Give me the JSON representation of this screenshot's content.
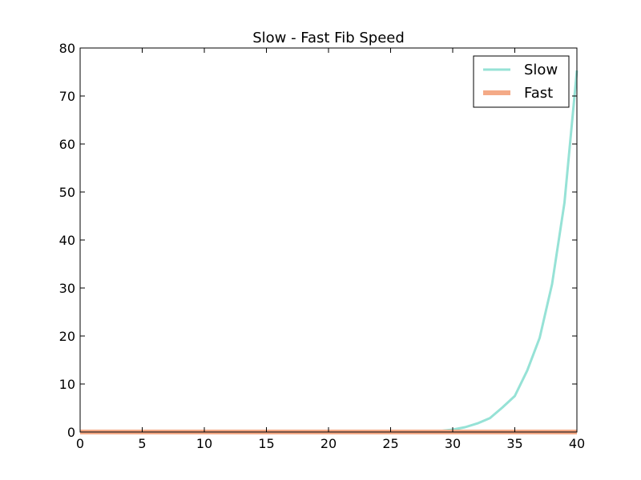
{
  "chart_data": {
    "type": "line",
    "title": "Slow - Fast Fib Speed",
    "xlabel": "",
    "ylabel": "",
    "xlim": [
      0,
      40
    ],
    "ylim": [
      0,
      80
    ],
    "xticks": [
      0,
      5,
      10,
      15,
      20,
      25,
      30,
      35,
      40
    ],
    "yticks": [
      0,
      10,
      20,
      30,
      40,
      50,
      60,
      70,
      80
    ],
    "grid": false,
    "legend_position": "top-right",
    "x": [
      0,
      1,
      2,
      3,
      4,
      5,
      6,
      7,
      8,
      9,
      10,
      11,
      12,
      13,
      14,
      15,
      16,
      17,
      18,
      19,
      20,
      21,
      22,
      23,
      24,
      25,
      26,
      27,
      28,
      29,
      30,
      31,
      32,
      33,
      34,
      35,
      36,
      37,
      38,
      39,
      40
    ],
    "series": [
      {
        "name": "Slow",
        "color": "#96e2d6",
        "values": [
          0,
          0,
          0,
          0,
          0,
          0,
          0,
          0,
          0,
          0,
          0,
          0,
          0,
          0,
          0,
          0,
          0,
          0,
          0,
          0,
          0,
          0,
          0,
          0,
          0,
          0,
          0.05,
          0.08,
          0.12,
          0.2,
          0.5,
          1.0,
          1.8,
          2.9,
          5.1,
          7.5,
          12.8,
          19.6,
          30.8,
          47.8,
          75.3
        ]
      },
      {
        "name": "Fast",
        "color": "#f4aa87",
        "values": [
          0,
          0,
          0,
          0,
          0,
          0,
          0,
          0,
          0,
          0,
          0,
          0,
          0,
          0,
          0,
          0,
          0,
          0,
          0,
          0,
          0,
          0,
          0,
          0,
          0,
          0,
          0,
          0,
          0,
          0,
          0,
          0,
          0,
          0,
          0,
          0,
          0,
          0,
          0,
          0,
          0
        ]
      }
    ]
  }
}
